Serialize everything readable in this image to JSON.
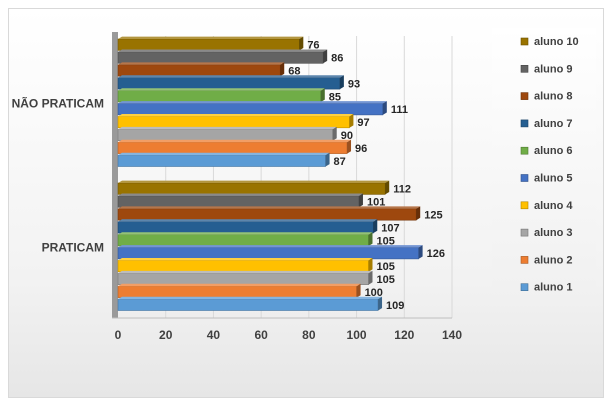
{
  "chart_data": {
    "type": "bar",
    "orientation": "horizontal",
    "categories": [
      "PRATICAM",
      "NÃO PRATICAM"
    ],
    "series": [
      {
        "name": "aluno 1",
        "values": [
          109,
          87
        ],
        "color": "#5b9bd5"
      },
      {
        "name": "aluno 2",
        "values": [
          100,
          96
        ],
        "color": "#ed7d31"
      },
      {
        "name": "aluno 3",
        "values": [
          105,
          90
        ],
        "color": "#a5a5a5"
      },
      {
        "name": "aluno 4",
        "values": [
          105,
          97
        ],
        "color": "#ffc000"
      },
      {
        "name": "aluno 5",
        "values": [
          126,
          111
        ],
        "color": "#4472c4"
      },
      {
        "name": "aluno 6",
        "values": [
          105,
          85
        ],
        "color": "#70ad47"
      },
      {
        "name": "aluno 7",
        "values": [
          107,
          93
        ],
        "color": "#255e91"
      },
      {
        "name": "aluno 8",
        "values": [
          125,
          68
        ],
        "color": "#9e480e"
      },
      {
        "name": "aluno 9",
        "values": [
          101,
          86
        ],
        "color": "#636363"
      },
      {
        "name": "aluno 10",
        "values": [
          112,
          76
        ],
        "color": "#997300"
      }
    ],
    "xlim": [
      0,
      140
    ],
    "xticks": [
      0,
      20,
      40,
      60,
      80,
      100,
      120,
      140
    ],
    "grid": true,
    "legend_position": "right",
    "title": "",
    "xlabel": "",
    "ylabel": ""
  }
}
